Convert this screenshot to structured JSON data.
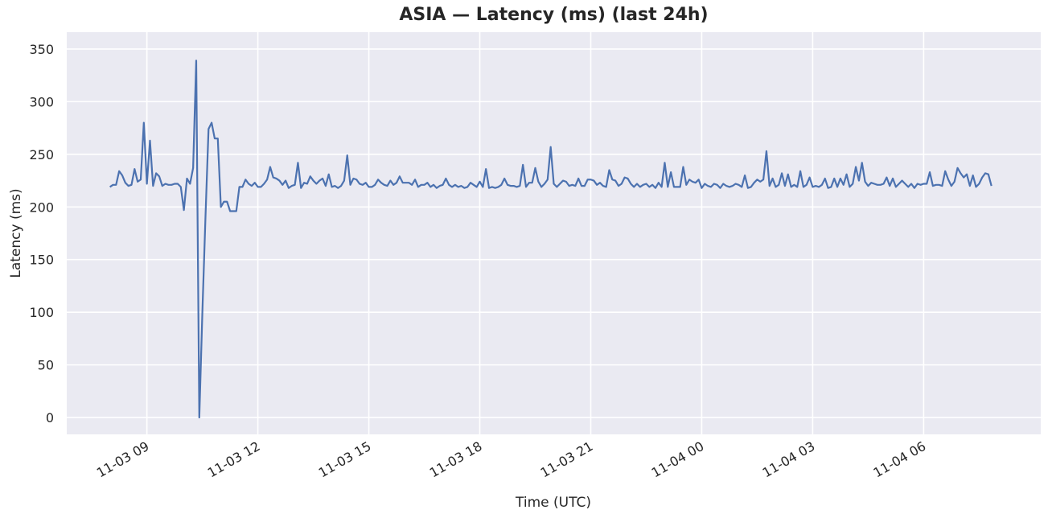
{
  "chart_data": {
    "type": "line",
    "title": "ASIA — Latency (ms) (last 24h)",
    "xlabel": "Time (UTC)",
    "ylabel": "Latency (ms)",
    "xlim": [
      "2025-11-03 06:50",
      "2025-11-04 09:10"
    ],
    "ylim": [
      -16,
      366
    ],
    "yticks": [
      0,
      50,
      100,
      150,
      200,
      250,
      300,
      350
    ],
    "xticks": [
      {
        "t": "2025-11-03 09:00",
        "label": "11-03 09"
      },
      {
        "t": "2025-11-03 12:00",
        "label": "11-03 12"
      },
      {
        "t": "2025-11-03 15:00",
        "label": "11-03 15"
      },
      {
        "t": "2025-11-03 18:00",
        "label": "11-03 18"
      },
      {
        "t": "2025-11-03 21:00",
        "label": "11-03 21"
      },
      {
        "t": "2025-11-04 00:00",
        "label": "11-04 00"
      },
      {
        "t": "2025-11-04 03:00",
        "label": "11-04 03"
      },
      {
        "t": "2025-11-04 06:00",
        "label": "11-04 06"
      }
    ],
    "grid": true,
    "background": "#eaeaf2",
    "line_color": "#4c72b0",
    "series": [
      {
        "start": "2025-11-03 08:00",
        "interval_minutes": 5,
        "values": [
          219,
          221,
          221,
          234,
          230,
          223,
          220,
          221,
          236,
          224,
          226,
          280,
          222,
          263,
          220,
          232,
          229,
          220,
          222,
          221,
          221,
          222,
          222,
          219,
          197,
          227,
          222,
          237,
          339,
          0,
          100,
          190,
          274,
          280,
          265,
          265,
          200,
          205,
          205,
          196,
          196,
          196,
          219,
          219,
          226,
          222,
          220,
          223,
          219,
          219,
          222,
          226,
          238,
          228,
          227,
          225,
          221,
          225,
          218,
          220,
          221,
          242,
          218,
          223,
          222,
          229,
          225,
          222,
          225,
          227,
          220,
          231,
          219,
          220,
          218,
          220,
          225,
          249,
          221,
          227,
          226,
          222,
          221,
          223,
          219,
          219,
          221,
          226,
          223,
          221,
          220,
          225,
          221,
          223,
          229,
          223,
          223,
          223,
          221,
          226,
          219,
          221,
          221,
          223,
          219,
          221,
          218,
          220,
          221,
          227,
          221,
          219,
          221,
          219,
          220,
          218,
          219,
          223,
          221,
          219,
          224,
          219,
          236,
          218,
          219,
          218,
          219,
          221,
          227,
          221,
          220,
          220,
          219,
          220,
          240,
          219,
          223,
          223,
          237,
          224,
          219,
          222,
          226,
          257,
          222,
          219,
          222,
          225,
          224,
          220,
          221,
          220,
          227,
          220,
          220,
          226,
          226,
          225,
          221,
          223,
          220,
          219,
          235,
          226,
          225,
          220,
          222,
          228,
          227,
          222,
          219,
          222,
          219,
          221,
          222,
          219,
          221,
          218,
          223,
          219,
          242,
          219,
          233,
          219,
          219,
          219,
          238,
          221,
          226,
          224,
          223,
          226,
          218,
          222,
          220,
          219,
          222,
          221,
          218,
          222,
          220,
          219,
          220,
          222,
          221,
          219,
          230,
          218,
          219,
          223,
          226,
          224,
          226,
          253,
          220,
          227,
          219,
          221,
          232,
          220,
          231,
          219,
          221,
          219,
          234,
          219,
          221,
          228,
          219,
          220,
          219,
          221,
          227,
          218,
          219,
          227,
          219,
          227,
          221,
          231,
          219,
          222,
          238,
          225,
          242,
          224,
          220,
          223,
          222,
          221,
          221,
          222,
          228,
          220,
          227,
          219,
          222,
          225,
          222,
          219,
          222,
          218,
          222,
          221,
          222,
          222,
          233,
          220,
          221,
          221,
          220,
          234,
          226,
          220,
          224,
          237,
          232,
          228,
          231,
          220,
          230,
          219,
          222,
          228,
          232,
          231,
          220
        ]
      }
    ]
  }
}
